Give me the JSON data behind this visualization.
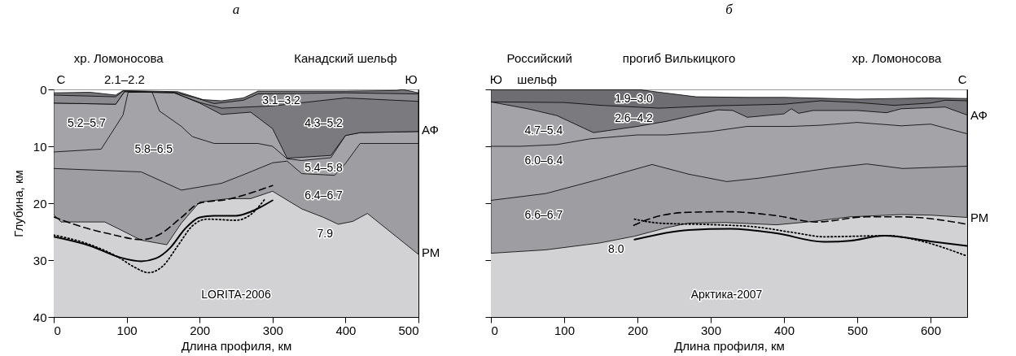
{
  "chart_data": [
    {
      "type": "area",
      "title": "а",
      "xlabel": "Длина профиля, км",
      "ylabel": "Глубина, км",
      "xlim": [
        0,
        500
      ],
      "xticks": [
        0,
        100,
        200,
        300,
        400,
        500
      ],
      "ylim": [
        40,
        0
      ],
      "yticks": [
        0,
        10,
        20,
        30,
        40
      ],
      "series": [
        {
          "type": "area",
          "color": "#ffffff",
          "x": [
            0,
            50,
            85,
            95,
            170,
            190,
            205,
            230,
            260,
            280,
            400,
            470,
            478,
            500
          ],
          "values": [
            0.6,
            0.5,
            1.0,
            0.2,
            0.4,
            1.2,
            1.8,
            2.0,
            1.5,
            0.3,
            0.3,
            0.2,
            0,
            0.6
          ]
        },
        {
          "type": "area",
          "color": "#76767a",
          "x": [
            0,
            85,
            95,
            165,
            195,
            220,
            260,
            280,
            400,
            500
          ],
          "values": [
            1.0,
            1.3,
            0.3,
            0.5,
            1.5,
            2.5,
            1.9,
            0.8,
            0.6,
            0.8
          ]
        },
        {
          "type": "area",
          "color": "#8b8b8f",
          "x": [
            0,
            85,
            97,
            165,
            200,
            230,
            300,
            400,
            500
          ],
          "values": [
            2.4,
            2.6,
            0.4,
            0.6,
            2.3,
            3.3,
            2.9,
            1.5,
            2.1
          ]
        },
        {
          "type": "area",
          "color": "#7b7b7f",
          "x": [
            0,
            85,
            97,
            165,
            200,
            230,
            270,
            300,
            320,
            380,
            400,
            420,
            500
          ],
          "values": [
            2.4,
            2.6,
            0.4,
            0.6,
            2.4,
            4.4,
            4.0,
            6.9,
            12.1,
            11.6,
            8.1,
            7.6,
            7.4
          ]
        },
        {
          "type": "area",
          "color": "#a4a4a8",
          "x": [
            0,
            65,
            95,
            102,
            135,
            145,
            175,
            190,
            220,
            280,
            300,
            320,
            340,
            380,
            400,
            420,
            500
          ],
          "values": [
            11,
            10.5,
            4.5,
            0.5,
            0.5,
            3.8,
            6.5,
            8.3,
            9.5,
            9.5,
            10,
            12.2,
            12.5,
            12.0,
            8.1,
            7.6,
            7.4
          ]
        },
        {
          "type": "area",
          "color": "#a4a4a8",
          "x": [
            0,
            120,
            175,
            230,
            260,
            300,
            320,
            340,
            385,
            400,
            420,
            500
          ],
          "values": [
            13.9,
            14.5,
            17.7,
            16.5,
            15,
            12.9,
            12.6,
            14.8,
            15.1,
            13,
            9.5,
            9.5
          ]
        },
        {
          "type": "area",
          "color": "#9e9ea2",
          "x": [
            0,
            10,
            70,
            120,
            155,
            175,
            200,
            240,
            270,
            300,
            340,
            370,
            390,
            410,
            430,
            500
          ],
          "values": [
            22,
            23.3,
            23.3,
            26.5,
            27.3,
            23.5,
            19.8,
            19.2,
            19.2,
            17.9,
            21,
            22.5,
            23.7,
            23.2,
            21.8,
            29
          ]
        },
        {
          "type": "line",
          "line_style": "solid",
          "color": "#000000",
          "x": [
            0,
            50,
            90,
            120,
            140,
            160,
            180,
            200,
            220,
            250,
            270,
            300
          ],
          "values": [
            25.9,
            27.5,
            29.5,
            30.2,
            29.7,
            27.8,
            24.5,
            22.5,
            22.2,
            22.2,
            21.5,
            19.5
          ]
        },
        {
          "type": "line",
          "line_style": "dashed",
          "color": "#000000",
          "x": [
            0,
            30,
            80,
            120,
            145,
            175,
            200,
            240,
            270,
            300
          ],
          "values": [
            22.4,
            23.8,
            25.5,
            26.4,
            25.5,
            22.5,
            20,
            19.3,
            18.2,
            16.9
          ]
        },
        {
          "type": "line",
          "line_style": "dotted",
          "color": "#000000",
          "x": [
            0,
            50,
            90,
            110,
            130,
            150,
            170,
            190,
            210,
            250,
            270,
            290
          ],
          "values": [
            25.6,
            27.3,
            29.6,
            31.2,
            32.2,
            31,
            27.5,
            24,
            22.8,
            23,
            22,
            19.2
          ]
        }
      ],
      "bands": [
        {
          "axis": "y",
          "from": 40,
          "to": 0,
          "color": "#d2d2d4"
        }
      ],
      "annotations": [
        "хр. Ломоносова",
        "Канадский шельф",
        "С",
        "2.1–2.2",
        "Ю",
        "5.2–5.7",
        "5.8–6.5",
        "3.1–3.2",
        "4.3–5.2",
        "5.4–5.8",
        "6.4–6.7",
        "7.9",
        "LORITA-2006",
        "АФ",
        "РМ"
      ]
    },
    {
      "type": "area",
      "title": "б",
      "xlabel": "Длина профиля, км",
      "xlim": [
        0,
        650
      ],
      "xticks": [
        0,
        100,
        200,
        300,
        400,
        500,
        600
      ],
      "ylim": [
        40,
        0
      ],
      "yticks": [
        0,
        10,
        20,
        30,
        40
      ],
      "tick_labels": "x",
      "series": [
        {
          "type": "area",
          "color": "#ffffff",
          "x": [
            0,
            100,
            200,
            230,
            280,
            350,
            400,
            500,
            600,
            650
          ],
          "values": [
            0,
            0,
            0,
            0.5,
            1.3,
            1.4,
            1.4,
            1.7,
            1.5,
            1.6
          ]
        },
        {
          "type": "area",
          "color": "#6e6e72",
          "x": [
            0,
            100,
            150,
            230,
            300,
            400,
            450,
            500,
            550,
            600,
            620,
            650
          ],
          "values": [
            2.2,
            2.3,
            2.8,
            3.3,
            2.9,
            2.6,
            2.0,
            2.3,
            2.8,
            2.4,
            1.9,
            2.0
          ]
        },
        {
          "type": "area",
          "color": "#7b7b7f",
          "x": [
            0,
            50,
            90,
            140,
            200,
            240,
            310,
            330,
            350,
            400,
            410,
            420,
            440,
            500,
            540,
            560,
            620,
            650
          ],
          "values": [
            2.2,
            3.4,
            4.6,
            7.6,
            6.5,
            5.6,
            3.6,
            3.7,
            4.9,
            4.3,
            3.4,
            4.2,
            3.7,
            3.7,
            4.1,
            3.4,
            3.1,
            4.5
          ]
        },
        {
          "type": "area",
          "color": "#a4a4a8",
          "x": [
            0,
            40,
            90,
            135,
            200,
            240,
            300,
            350,
            410,
            450,
            500,
            560,
            600,
            650
          ],
          "values": [
            10,
            10,
            9.7,
            8.7,
            8.0,
            8.0,
            7.4,
            6.5,
            6.5,
            6.3,
            5.8,
            6.4,
            6.1,
            7.8
          ]
        },
        {
          "type": "area",
          "color": "#a4a4a8",
          "x": [
            0,
            75,
            148,
            220,
            270,
            322,
            366,
            415,
            464,
            513,
            562,
            650
          ],
          "values": [
            19.5,
            18.3,
            15.8,
            13.2,
            14.9,
            16.2,
            15.6,
            14.7,
            13.8,
            13.1,
            13.9,
            13.5
          ]
        },
        {
          "type": "area",
          "color": "#9e9ea2",
          "x": [
            0,
            75,
            148,
            196,
            240,
            270,
            320,
            390,
            440,
            490,
            560,
            600,
            650
          ],
          "values": [
            28.8,
            28.2,
            27,
            25.8,
            24.3,
            23.5,
            23.4,
            23.8,
            23.2,
            22.4,
            22.0,
            22.1,
            22.5
          ]
        },
        {
          "type": "line",
          "line_style": "solid",
          "color": "#000000",
          "x": [
            196,
            270,
            327,
            390,
            454,
            490,
            537,
            600,
            650
          ],
          "values": [
            26.4,
            24.7,
            24.5,
            25.3,
            26.8,
            26.6,
            25.7,
            26.7,
            27.5
          ]
        },
        {
          "type": "line",
          "line_style": "dashed",
          "color": "#000000",
          "x": [
            195,
            220,
            269,
            322,
            390,
            444,
            512,
            561,
            650
          ],
          "values": [
            23.9,
            22.6,
            21.6,
            21.5,
            22.2,
            23.3,
            22.4,
            22.4,
            23.7
          ]
        },
        {
          "type": "line",
          "line_style": "dotted",
          "color": "#000000",
          "x": [
            196,
            230,
            308,
            356,
            415,
            454,
            542,
            585,
            650
          ],
          "values": [
            22.8,
            23.5,
            23.8,
            24.1,
            25.2,
            25.9,
            25.7,
            26.6,
            29.3
          ]
        }
      ],
      "bands": [
        {
          "axis": "y",
          "from": 40,
          "to": 0,
          "color": "#d2d2d4"
        }
      ],
      "annotations": [
        "Российский",
        "прогиб Вилькицкого",
        "хр. Ломоносова",
        "Ю",
        "шельф",
        "С",
        "1.9–3.0",
        "2.6–4.2",
        "4.7–5.4",
        "6.0–6.4",
        "6.6–6.7",
        "8.0",
        "Арктика-2007",
        "АФ",
        "РМ"
      ]
    }
  ]
}
